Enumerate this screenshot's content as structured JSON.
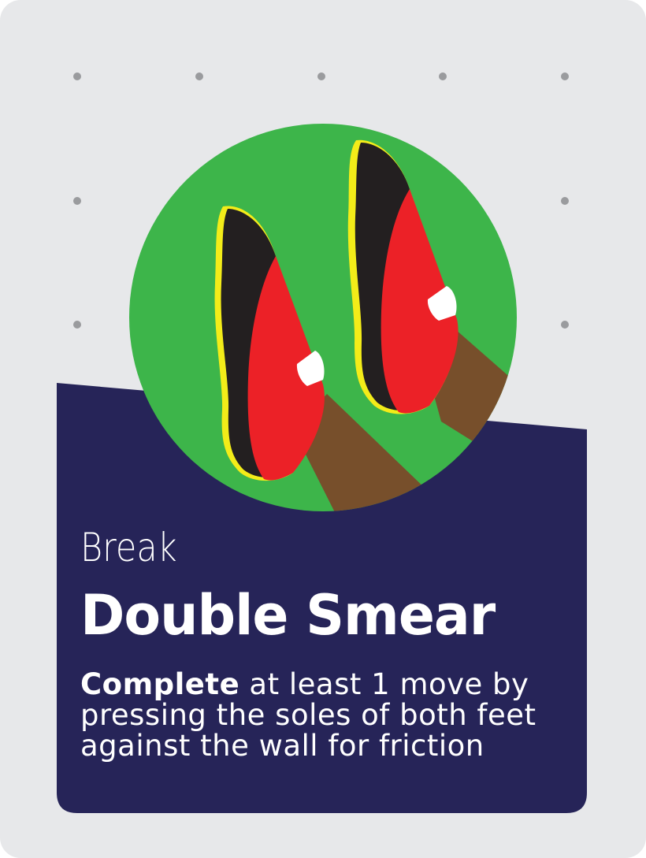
{
  "card": {
    "category": "Break",
    "title": "Double Smear",
    "description_bold": "Complete",
    "description_rest": " at least 1 move by pressing the soles of both feet against the wall for friction"
  },
  "colors": {
    "background": "#e7e8ea",
    "panel": "#262458",
    "circle": "#3db54a",
    "shoe_sole": "#231f20",
    "shoe_red": "#ec2127",
    "shoe_edge": "#f3ec19",
    "leg": "#774f2b",
    "dot": "#9a9b9e"
  },
  "icons": {
    "illustration": "climbing-shoes-icon"
  }
}
